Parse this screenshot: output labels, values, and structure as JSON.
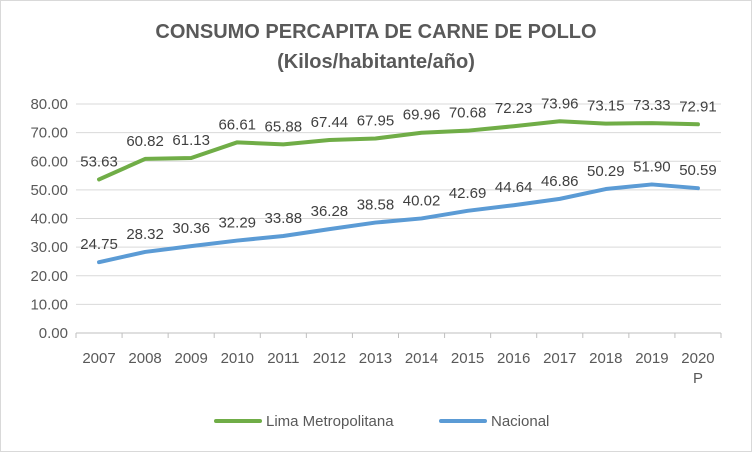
{
  "chart_data": {
    "type": "line",
    "title": "CONSUMO PERCAPITA DE CARNE DE POLLO",
    "subtitle": "(Kilos/habitante/año)",
    "categories": [
      "2007",
      "2008",
      "2009",
      "2010",
      "2011",
      "2012",
      "2013",
      "2014",
      "2015",
      "2016",
      "2017",
      "2018",
      "2019",
      "2020 P"
    ],
    "yticks": [
      "0.00",
      "10.00",
      "20.00",
      "30.00",
      "40.00",
      "50.00",
      "60.00",
      "70.00",
      "80.00"
    ],
    "ylim": [
      0,
      80
    ],
    "grid": true,
    "legend_position": "bottom",
    "series": [
      {
        "name": "Lima Metropolitana",
        "color": "#70ad47",
        "values": [
          53.63,
          60.82,
          61.13,
          66.61,
          65.88,
          67.44,
          67.95,
          69.96,
          70.68,
          72.23,
          73.96,
          73.15,
          73.33,
          72.91
        ],
        "labels": [
          "53.63",
          "60.82",
          "61.13",
          "66.61",
          "65.88",
          "67.44",
          "67.95",
          "69.96",
          "70.68",
          "72.23",
          "73.96",
          "73.15",
          "73.33",
          "72.91"
        ]
      },
      {
        "name": "Nacional",
        "color": "#5b9bd5",
        "values": [
          24.75,
          28.32,
          30.36,
          32.29,
          33.88,
          36.28,
          38.58,
          40.02,
          42.69,
          44.64,
          46.86,
          50.29,
          51.9,
          50.59
        ],
        "labels": [
          "24.75",
          "28.32",
          "30.36",
          "32.29",
          "33.88",
          "36.28",
          "38.58",
          "40.02",
          "42.69",
          "44.64",
          "46.86",
          "50.29",
          "51.90",
          "50.59"
        ]
      }
    ]
  }
}
